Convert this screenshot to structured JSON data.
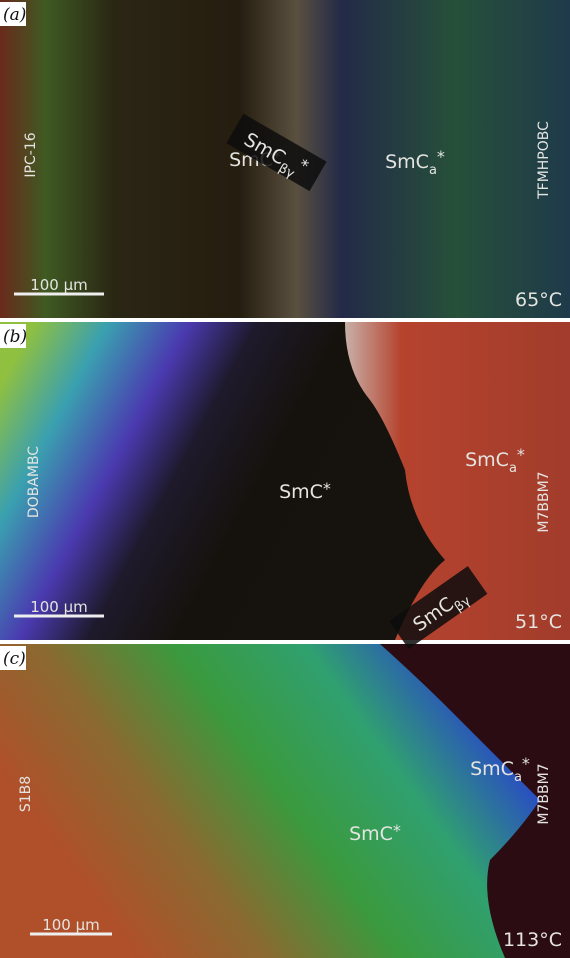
{
  "panels": [
    {
      "label": "(a)",
      "left_compound": "IPC-16",
      "right_compound": "TFMHPOBC",
      "phases": [
        {
          "base": "SmC",
          "sup": "*"
        },
        {
          "base": "SmC",
          "sub": "βγ",
          "sup": "*"
        },
        {
          "base": "SmC",
          "sub": "a",
          "sup": "*"
        }
      ],
      "scale_bar": "100 μm",
      "temperature": "65°C"
    },
    {
      "label": "(b)",
      "left_compound": "DOBAMBC",
      "right_compound": "M7BBM7",
      "phases": [
        {
          "base": "SmC",
          "sup": "*"
        },
        {
          "base": "SmC",
          "sub": "a",
          "sup": "*"
        },
        {
          "base": "SmC",
          "sub": "βγ"
        }
      ],
      "scale_bar": "100 μm",
      "temperature": "51°C"
    },
    {
      "label": "(c)",
      "left_compound": "S1B8",
      "right_compound": "M7BBM7",
      "phases": [
        {
          "base": "SmC",
          "sup": "*"
        },
        {
          "base": "SmC",
          "sub": "a",
          "sup": "*"
        }
      ],
      "scale_bar": "100 μm",
      "temperature": "113°C"
    }
  ]
}
